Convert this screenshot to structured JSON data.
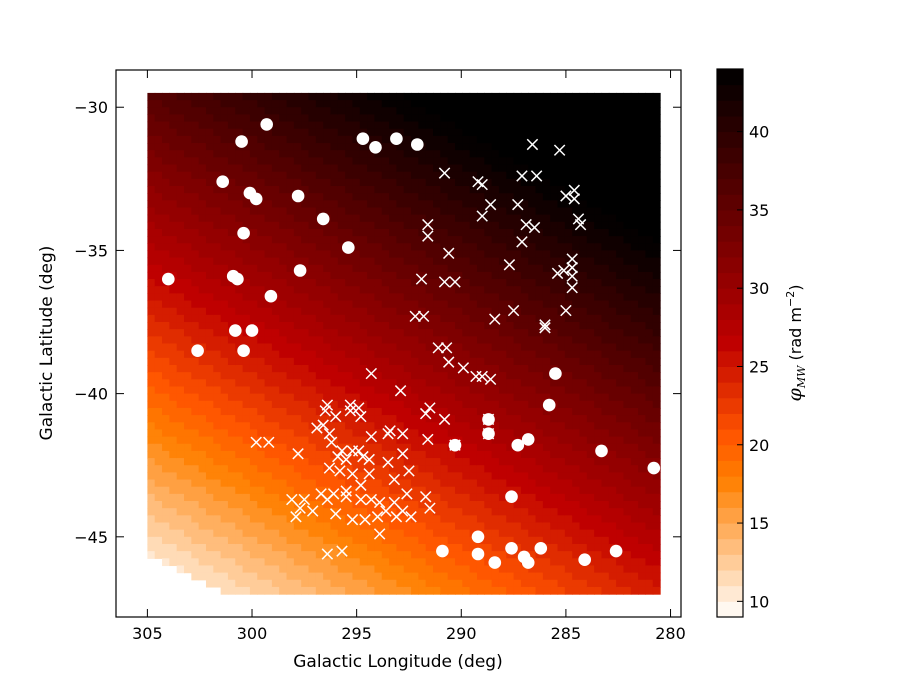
{
  "chart_data": {
    "type": "scatter",
    "title": "",
    "xlabel": "Galactic Longitude (deg)",
    "ylabel": "Galactic Latitude (deg)",
    "x_inverted": true,
    "xlim": [
      306.5,
      279.5
    ],
    "ylim": [
      -47.8,
      -28.7
    ],
    "xticks": [
      305,
      300,
      295,
      290,
      285,
      280
    ],
    "yticks": [
      -30,
      -35,
      -40,
      -45
    ],
    "xtick_labels": [
      "305",
      "300",
      "295",
      "290",
      "285",
      "280"
    ],
    "ytick_labels": [
      "−30",
      "−35",
      "−40",
      "−45"
    ],
    "grid": false,
    "background_field": {
      "type": "filled_contour",
      "description_label": "φ_MW",
      "colormap": "gist_heat_r",
      "extent": {
        "lon": [
          305,
          280.5
        ],
        "lat": [
          -47,
          -29.5
        ]
      },
      "min_value": 9,
      "max_value": 44,
      "approx_model": {
        "base_value": 37.4,
        "lon_ref": 290,
        "lat_ref": -35,
        "d_per_deg_lon": -0.66,
        "d_per_deg_lat": 1.58
      }
    },
    "colorbar": {
      "label_main": "φ",
      "label_sub": "MW",
      "label_unit": " (rad m",
      "label_exp": "−2",
      "label_close": ")",
      "range": [
        9,
        44
      ],
      "ticks": [
        10,
        15,
        20,
        25,
        30,
        35,
        40
      ],
      "tick_labels": [
        "10",
        "15",
        "20",
        "25",
        "30",
        "35",
        "40"
      ]
    },
    "series": [
      {
        "marker": "circle",
        "color": "#ffffff",
        "points": [
          [
            299.3,
            -30.6
          ],
          [
            300.5,
            -31.2
          ],
          [
            294.7,
            -31.1
          ],
          [
            294.1,
            -31.4
          ],
          [
            293.1,
            -31.1
          ],
          [
            292.1,
            -31.3
          ],
          [
            301.4,
            -32.6
          ],
          [
            300.1,
            -33.0
          ],
          [
            299.8,
            -33.2
          ],
          [
            297.8,
            -33.1
          ],
          [
            296.6,
            -33.9
          ],
          [
            300.4,
            -34.4
          ],
          [
            295.4,
            -34.9
          ],
          [
            304.0,
            -36.0
          ],
          [
            300.9,
            -35.9
          ],
          [
            300.7,
            -36.0
          ],
          [
            297.7,
            -35.7
          ],
          [
            299.1,
            -36.6
          ],
          [
            300.8,
            -37.8
          ],
          [
            300.0,
            -37.8
          ],
          [
            302.6,
            -38.5
          ],
          [
            300.4,
            -38.5
          ],
          [
            285.5,
            -39.3
          ],
          [
            285.8,
            -40.4
          ],
          [
            288.7,
            -40.9
          ],
          [
            288.7,
            -41.4
          ],
          [
            290.3,
            -41.8
          ],
          [
            286.8,
            -41.6
          ],
          [
            287.3,
            -41.8
          ],
          [
            280.8,
            -42.6
          ],
          [
            283.3,
            -42.0
          ],
          [
            287.6,
            -43.6
          ],
          [
            289.2,
            -45.0
          ],
          [
            289.2,
            -45.6
          ],
          [
            290.9,
            -45.5
          ],
          [
            288.4,
            -45.9
          ],
          [
            287.6,
            -45.4
          ],
          [
            287.0,
            -45.7
          ],
          [
            286.8,
            -45.9
          ],
          [
            286.2,
            -45.4
          ],
          [
            284.1,
            -45.8
          ],
          [
            282.6,
            -45.5
          ]
        ]
      },
      {
        "marker": "x",
        "color": "#ffffff",
        "points": [
          [
            290.8,
            -32.3
          ],
          [
            289.2,
            -32.6
          ],
          [
            289.0,
            -32.7
          ],
          [
            288.6,
            -33.4
          ],
          [
            289.0,
            -33.8
          ],
          [
            291.6,
            -34.1
          ],
          [
            291.6,
            -34.5
          ],
          [
            290.6,
            -35.1
          ],
          [
            291.9,
            -36.0
          ],
          [
            290.8,
            -36.1
          ],
          [
            290.3,
            -36.1
          ],
          [
            292.2,
            -37.3
          ],
          [
            291.8,
            -37.3
          ],
          [
            288.4,
            -37.4
          ],
          [
            287.1,
            -32.4
          ],
          [
            286.4,
            -32.4
          ],
          [
            286.6,
            -31.3
          ],
          [
            285.3,
            -31.5
          ],
          [
            284.6,
            -32.9
          ],
          [
            284.6,
            -33.2
          ],
          [
            285.0,
            -33.1
          ],
          [
            284.4,
            -33.9
          ],
          [
            287.3,
            -33.4
          ],
          [
            286.9,
            -34.1
          ],
          [
            286.5,
            -34.2
          ],
          [
            287.1,
            -34.7
          ],
          [
            284.3,
            -34.1
          ],
          [
            287.7,
            -35.5
          ],
          [
            285.1,
            -35.7
          ],
          [
            285.4,
            -35.8
          ],
          [
            284.7,
            -35.3
          ],
          [
            284.7,
            -35.6
          ],
          [
            284.7,
            -35.9
          ],
          [
            284.7,
            -36.3
          ],
          [
            287.5,
            -37.1
          ],
          [
            286.0,
            -37.6
          ],
          [
            286.0,
            -37.7
          ],
          [
            285.0,
            -37.1
          ],
          [
            291.1,
            -38.4
          ],
          [
            290.7,
            -38.4
          ],
          [
            290.6,
            -38.9
          ],
          [
            289.9,
            -39.1
          ],
          [
            289.3,
            -39.4
          ],
          [
            289.0,
            -39.4
          ],
          [
            288.6,
            -39.5
          ],
          [
            294.3,
            -39.3
          ],
          [
            292.9,
            -39.9
          ],
          [
            291.5,
            -40.5
          ],
          [
            291.6,
            -41.6
          ],
          [
            291.7,
            -40.7
          ],
          [
            290.8,
            -40.9
          ],
          [
            296.4,
            -40.4
          ],
          [
            296.5,
            -40.6
          ],
          [
            296.0,
            -40.8
          ],
          [
            295.3,
            -40.4
          ],
          [
            295.3,
            -40.6
          ],
          [
            294.9,
            -40.5
          ],
          [
            294.8,
            -40.8
          ],
          [
            294.3,
            -41.5
          ],
          [
            293.5,
            -41.4
          ],
          [
            292.8,
            -41.4
          ],
          [
            293.4,
            -41.3
          ],
          [
            299.8,
            -41.7
          ],
          [
            299.2,
            -41.7
          ],
          [
            297.8,
            -42.1
          ],
          [
            296.9,
            -41.2
          ],
          [
            296.6,
            -41.1
          ],
          [
            296.3,
            -41.4
          ],
          [
            296.2,
            -41.7
          ],
          [
            295.9,
            -42.2
          ],
          [
            295.7,
            -42.0
          ],
          [
            295.5,
            -42.3
          ],
          [
            295.2,
            -42.0
          ],
          [
            294.9,
            -42.0
          ],
          [
            294.7,
            -42.2
          ],
          [
            294.4,
            -42.3
          ],
          [
            296.3,
            -42.6
          ],
          [
            295.8,
            -42.7
          ],
          [
            295.2,
            -42.8
          ],
          [
            294.4,
            -42.8
          ],
          [
            293.5,
            -42.4
          ],
          [
            292.8,
            -42.1
          ],
          [
            292.5,
            -42.7
          ],
          [
            293.2,
            -43.0
          ],
          [
            294.8,
            -43.2
          ],
          [
            295.5,
            -43.4
          ],
          [
            296.1,
            -43.5
          ],
          [
            296.7,
            -43.5
          ],
          [
            296.4,
            -43.7
          ],
          [
            297.5,
            -43.7
          ],
          [
            298.1,
            -43.7
          ],
          [
            297.7,
            -44.0
          ],
          [
            297.1,
            -44.1
          ],
          [
            297.9,
            -44.3
          ],
          [
            295.5,
            -43.6
          ],
          [
            294.8,
            -43.7
          ],
          [
            294.3,
            -43.7
          ],
          [
            293.9,
            -43.8
          ],
          [
            293.2,
            -43.8
          ],
          [
            292.6,
            -43.5
          ],
          [
            291.7,
            -43.6
          ],
          [
            291.5,
            -44.0
          ],
          [
            292.8,
            -44.1
          ],
          [
            292.4,
            -44.3
          ],
          [
            293.6,
            -44.1
          ],
          [
            294.0,
            -44.3
          ],
          [
            294.6,
            -44.4
          ],
          [
            295.2,
            -44.4
          ],
          [
            296.0,
            -44.2
          ],
          [
            293.1,
            -44.3
          ],
          [
            293.9,
            -44.9
          ],
          [
            296.4,
            -45.6
          ],
          [
            295.7,
            -45.5
          ],
          [
            290.3,
            -41.8
          ],
          [
            288.7,
            -40.9
          ],
          [
            288.7,
            -41.4
          ]
        ]
      }
    ]
  }
}
